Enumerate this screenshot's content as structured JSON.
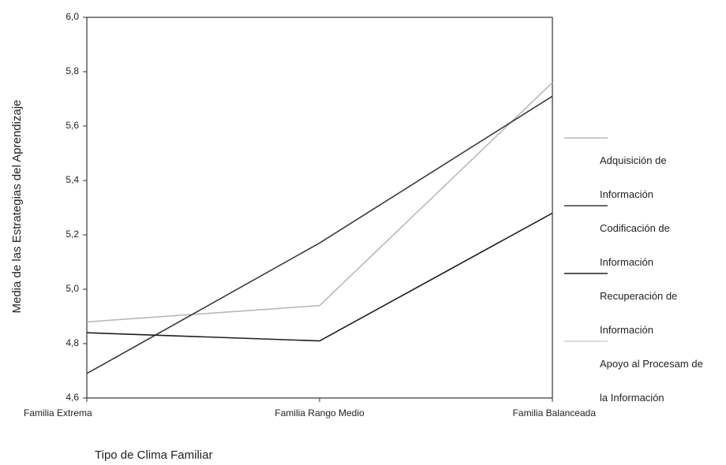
{
  "chart_data": {
    "type": "line",
    "y_label": "Media de las Estrategias del Aprendizaje",
    "x_label": "Tipo de Clima Familiar",
    "categories": [
      "Familia Extrema",
      "Familia Rango Medio",
      "Familia Balanceada"
    ],
    "series": [
      {
        "name": "Adquisición de Información",
        "color": "#b8b8b8",
        "values": [
          4.88,
          4.94,
          5.76
        ]
      },
      {
        "name": "Codificación de Información",
        "color": "#3a3a3a",
        "values": [
          4.69,
          5.17,
          5.71
        ]
      },
      {
        "name": "Recuperación de Información",
        "color": "#1e1e1e",
        "values": [
          4.84,
          4.81,
          5.28
        ]
      },
      {
        "name": "Apoyo al Procesam de la Información",
        "color": "#cfcfcf",
        "values": [
          null,
          null,
          null
        ]
      }
    ],
    "ylim": [
      4.6,
      6.0
    ],
    "yticks": [
      {
        "value": 4.6,
        "label": "4,6"
      },
      {
        "value": 4.8,
        "label": "4,8"
      },
      {
        "value": 5.0,
        "label": "5,0"
      },
      {
        "value": 5.2,
        "label": "5,2"
      },
      {
        "value": 5.4,
        "label": "5,4"
      },
      {
        "value": 5.6,
        "label": "5,6"
      },
      {
        "value": 5.8,
        "label": "5,8"
      },
      {
        "value": 6.0,
        "label": "6,0"
      }
    ]
  }
}
